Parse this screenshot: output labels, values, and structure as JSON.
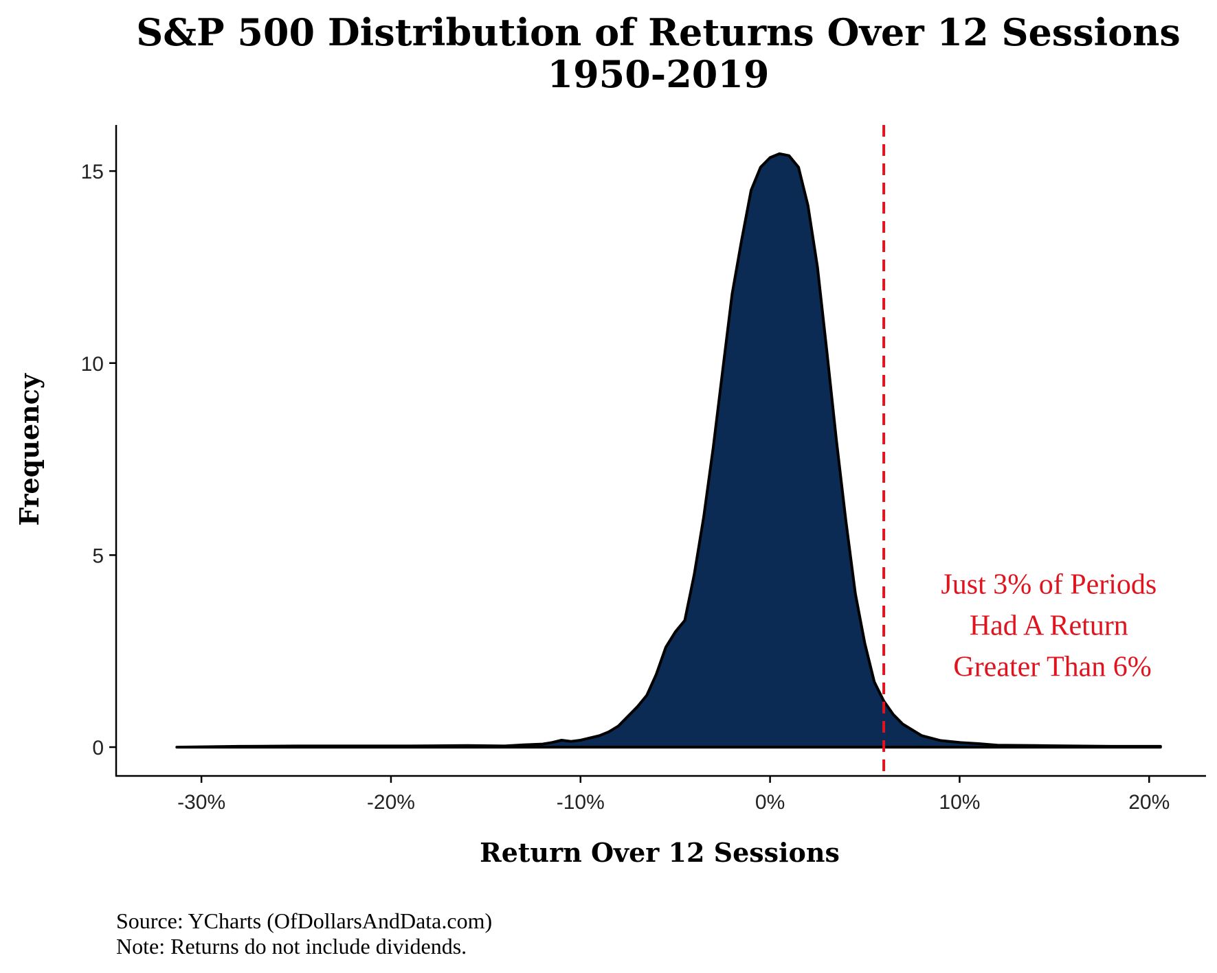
{
  "chart_data": {
    "type": "area",
    "title": "S&P 500 Distribution of Returns Over 12 Sessions",
    "subtitle": "1950-2019",
    "xlabel": "Return Over 12 Sessions",
    "ylabel": "Frequency",
    "xlim": [
      -0.345,
      0.23
    ],
    "ylim": [
      -0.75,
      16.2
    ],
    "x_ticks": [
      -0.3,
      -0.2,
      -0.1,
      0,
      0.1,
      0.2
    ],
    "x_tick_labels": [
      "-30%",
      "-20%",
      "-10%",
      "0%",
      "10%",
      "20%"
    ],
    "y_ticks": [
      0,
      5,
      10,
      15
    ],
    "y_tick_labels": [
      "0",
      "5",
      "10",
      "15"
    ],
    "grid": false,
    "legend": "none",
    "fill_color": "#0b2b54",
    "line_color": "#000000",
    "reference_line": {
      "x": 0.06,
      "color": "#e0141e",
      "style": "dashed"
    },
    "annotation": {
      "lines": [
        "Just 3% of Periods",
        "Had A Return",
        "Greater Than 6%"
      ],
      "x": 0.149,
      "y": 4.0,
      "color": "#e0141e"
    },
    "series": [
      {
        "x": [
          -0.313,
          -0.28,
          -0.25,
          -0.22,
          -0.19,
          -0.16,
          -0.14,
          -0.13,
          -0.12,
          -0.115,
          -0.11,
          -0.105,
          -0.1,
          -0.09,
          -0.085,
          -0.08,
          -0.075,
          -0.07,
          -0.065,
          -0.06,
          -0.055,
          -0.05,
          -0.045,
          -0.04,
          -0.035,
          -0.03,
          -0.025,
          -0.02,
          -0.015,
          -0.01,
          -0.005,
          0,
          0.005,
          0.01,
          0.015,
          0.02,
          0.025,
          0.03,
          0.035,
          0.04,
          0.045,
          0.05,
          0.055,
          0.06,
          0.065,
          0.07,
          0.08,
          0.09,
          0.1,
          0.11,
          0.12,
          0.14,
          0.16,
          0.18,
          0.2,
          0.206
        ],
        "y": [
          0,
          0.02,
          0.03,
          0.03,
          0.03,
          0.04,
          0.03,
          0.06,
          0.08,
          0.12,
          0.18,
          0.15,
          0.18,
          0.3,
          0.4,
          0.55,
          0.8,
          1.05,
          1.35,
          1.9,
          2.6,
          3.0,
          3.3,
          4.5,
          6.0,
          7.8,
          9.8,
          11.8,
          13.2,
          14.5,
          15.1,
          15.35,
          15.45,
          15.4,
          15.1,
          14.1,
          12.5,
          10.3,
          8.0,
          5.9,
          4.0,
          2.7,
          1.7,
          1.2,
          0.85,
          0.6,
          0.3,
          0.17,
          0.12,
          0.09,
          0.05,
          0.04,
          0.03,
          0.02,
          0.02,
          0.02
        ]
      }
    ]
  },
  "caption": {
    "source": "Source:  YCharts (OfDollarsAndData.com)",
    "note": "Note: Returns do not include dividends."
  }
}
